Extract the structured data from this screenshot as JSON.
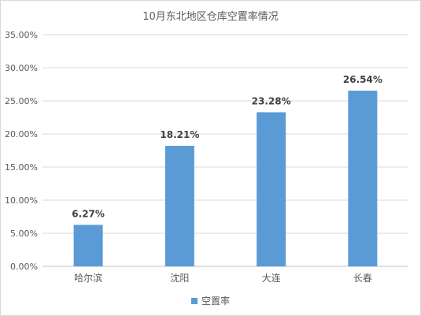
{
  "chart_data": {
    "type": "bar",
    "title": "10月东北地区仓库空置率情况",
    "categories": [
      "哈尔滨",
      "沈阳",
      "大连",
      "长春"
    ],
    "series": [
      {
        "name": "空置率",
        "values": [
          6.27,
          18.21,
          23.28,
          26.54
        ],
        "color": "#5b9bd5"
      }
    ],
    "data_labels": [
      "6.27%",
      "18.21%",
      "23.28%",
      "26.54%"
    ],
    "y_ticks": [
      "0.00%",
      "5.00%",
      "10.00%",
      "15.00%",
      "20.00%",
      "25.00%",
      "30.00%",
      "35.00%"
    ],
    "ylim": [
      0,
      35
    ],
    "grid": true,
    "legend_position": "bottom",
    "xlabel": "",
    "ylabel": ""
  }
}
